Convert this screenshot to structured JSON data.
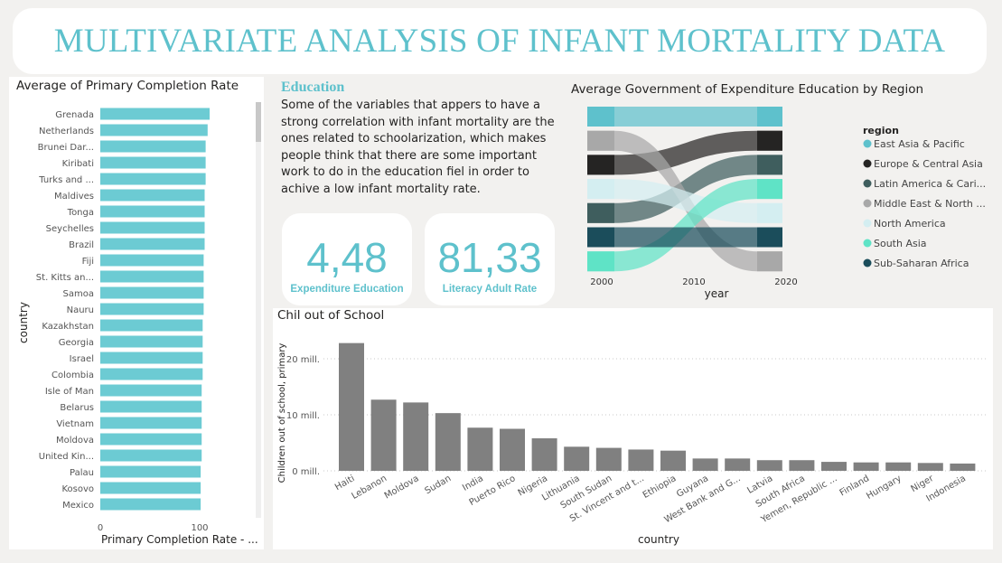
{
  "page_title": "MULTIVARIATE ANALYSIS OF INFANT MORTALITY DATA",
  "text_block": {
    "heading": "Education",
    "body": "Some of the variables that appers to have a strong correlation with infant mortality are the ones related to schoolarization, which makes people think that there are some important work to do in the education fiel in order to achive a low infant mortality rate."
  },
  "kpis": [
    {
      "value": "4,48",
      "label": "Expenditure Education"
    },
    {
      "value": "81,33",
      "label": "Literacy Adult Rate"
    }
  ],
  "colors": {
    "accent": "#5ec1cc",
    "bar_teal": "#6ccbd3",
    "column_gray": "#808080"
  },
  "chart_data": [
    {
      "type": "bar",
      "orientation": "horizontal",
      "title": "Average of Primary Completion Rate",
      "ylabel": "country",
      "xlabel": "Primary Completion Rate - ...",
      "x_ticks": [
        "0",
        "100"
      ],
      "xlim": [
        0,
        120
      ],
      "categories": [
        "Grenada",
        "Netherlands",
        "Brunei Dar...",
        "Kiribati",
        "Turks and ...",
        "Maldives",
        "Tonga",
        "Seychelles",
        "Brazil",
        "Fiji",
        "St. Kitts an...",
        "Samoa",
        "Nauru",
        "Kazakhstan",
        "Georgia",
        "Israel",
        "Colombia",
        "Isle of Man",
        "Belarus",
        "Vietnam",
        "Moldova",
        "United Kin...",
        "Palau",
        "Kosovo",
        "Mexico"
      ],
      "values": [
        110,
        108,
        106,
        106,
        106,
        105,
        105,
        105,
        105,
        104,
        104,
        104,
        104,
        103,
        103,
        103,
        103,
        102,
        102,
        102,
        102,
        102,
        101,
        101,
        101
      ]
    },
    {
      "type": "sankey",
      "title": "Average Government of Expenditure Education by Region",
      "xlabel": "year",
      "x_ticks": [
        "2000",
        "2010",
        "2020"
      ],
      "legend_title": "region",
      "legend_position": "right",
      "series": [
        {
          "name": "East Asia & Pacific",
          "color": "#5ec1cc",
          "rank_2000": 0,
          "rank_2020": 0
        },
        {
          "name": "Europe & Central Asia",
          "color": "#252423",
          "rank_2000": 2,
          "rank_2020": 1
        },
        {
          "name": "Latin America & Cari...",
          "color": "#3f5e5e",
          "rank_2000": 4,
          "rank_2020": 2
        },
        {
          "name": "Middle East & North ...",
          "color": "#a8a8a8",
          "rank_2000": 1,
          "rank_2020": 6
        },
        {
          "name": "North America",
          "color": "#d4eef1",
          "rank_2000": 3,
          "rank_2020": 4
        },
        {
          "name": "South Asia",
          "color": "#5fe3c6",
          "rank_2000": 6,
          "rank_2020": 3
        },
        {
          "name": "Sub-Saharan Africa",
          "color": "#1b4d5b",
          "rank_2000": 5,
          "rank_2020": 5
        }
      ]
    },
    {
      "type": "bar",
      "title": "Chil out of School",
      "xlabel": "country",
      "ylabel": "Children out of school, primary",
      "y_ticks": [
        "0 mill.",
        "10 mill.",
        "20 mill."
      ],
      "ylim": [
        0,
        24
      ],
      "categories": [
        "Haiti",
        "Lebanon",
        "Moldova",
        "Sudan",
        "India",
        "Puerto Rico",
        "Nigeria",
        "Lithuania",
        "South Sudan",
        "St. Vincent and t...",
        "Ethiopia",
        "Guyana",
        "West Bank and G...",
        "Latvia",
        "South Africa",
        "Yemen, Republic ...",
        "Finland",
        "Hungary",
        "Niger",
        "Indonesia"
      ],
      "values": [
        22.8,
        12.7,
        12.2,
        10.3,
        7.7,
        7.5,
        5.8,
        4.3,
        4.1,
        3.8,
        3.6,
        2.2,
        2.2,
        1.9,
        1.9,
        1.6,
        1.5,
        1.5,
        1.4,
        1.3
      ]
    }
  ]
}
